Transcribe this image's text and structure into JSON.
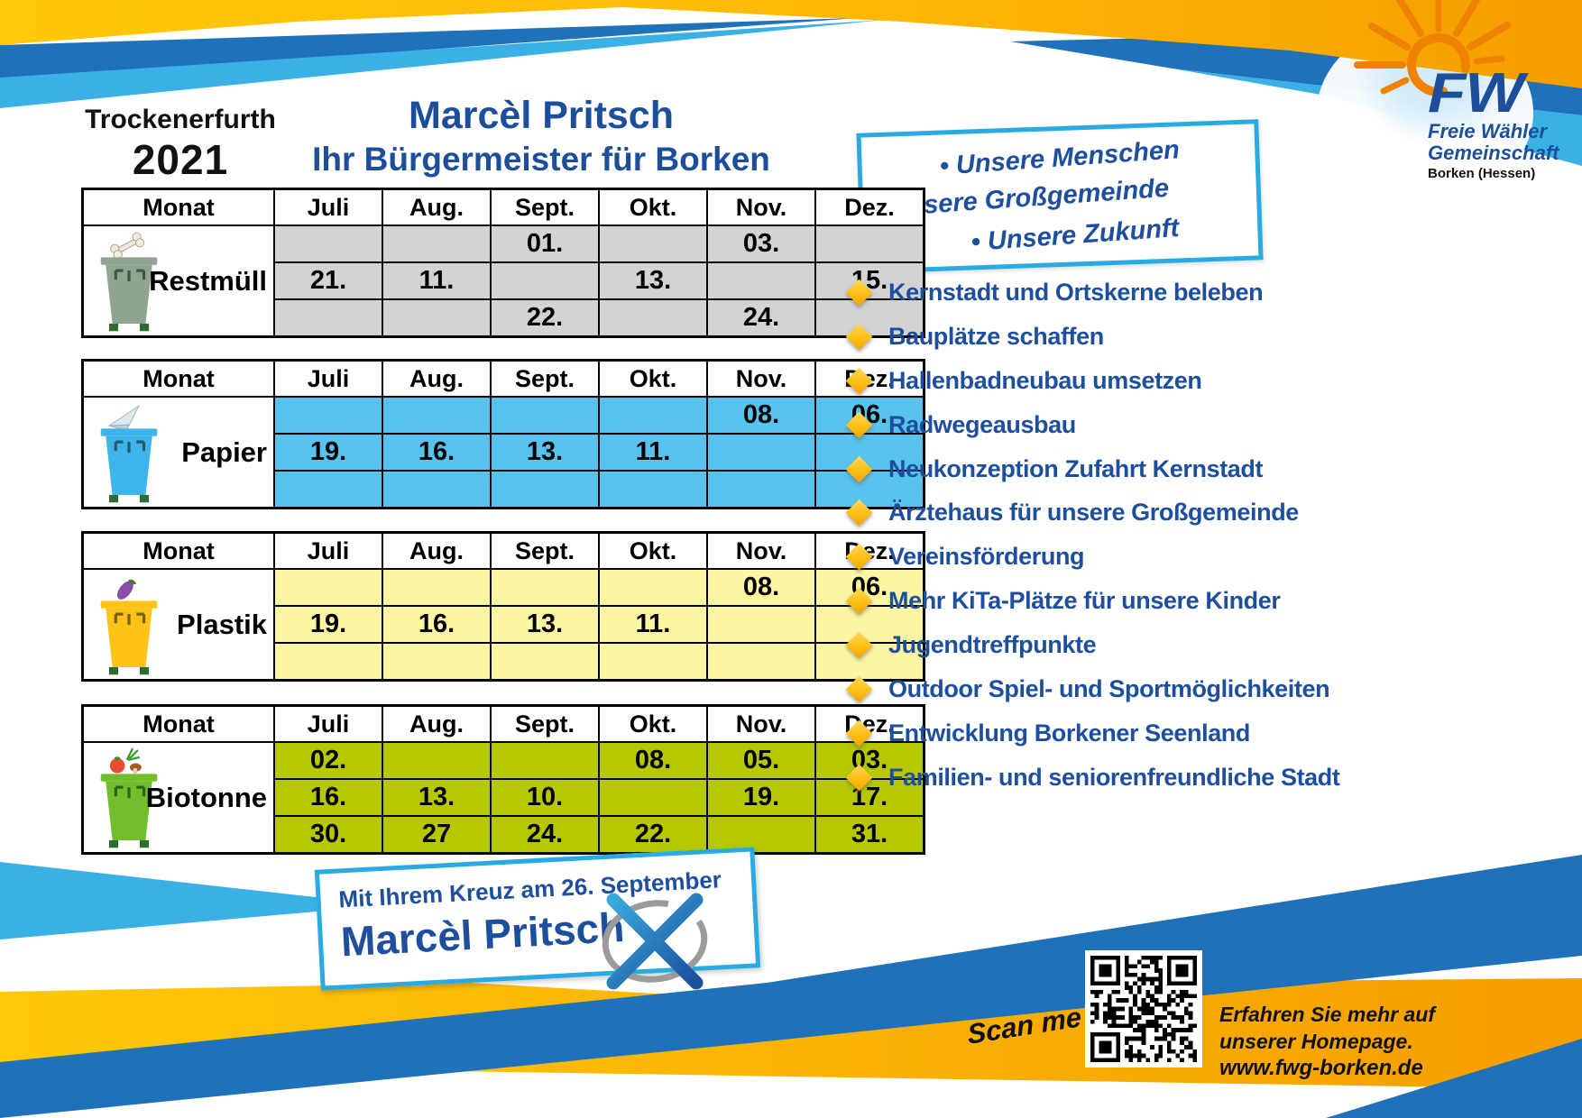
{
  "location": {
    "name": "Trockenerfurth",
    "year": "2021"
  },
  "header": {
    "title": "Marcèl Pritsch",
    "subtitle": "Ihr Bürgermeister für Borken"
  },
  "logo": {
    "abbr": "FW",
    "org_line1": "Freie Wähler",
    "org_line2": "Gemeinschaft",
    "org_line3": "Borken (Hessen)"
  },
  "slogan_box": {
    "lines": [
      "• Unsere Menschen",
      "• Unsere Großgemeinde",
      "• Unsere Zukunft"
    ]
  },
  "calendar": {
    "header_row": [
      "Monat",
      "Juli",
      "Aug.",
      "Sept.",
      "Okt.",
      "Nov.",
      "Dez."
    ],
    "tables": [
      {
        "category": "Restmüll",
        "icon": "restmuell-bin-icon",
        "topper": "bone",
        "row_color": "#d3d3d3",
        "bin_color": "#8fa591",
        "rows": [
          [
            "",
            "",
            "01.",
            "",
            "03.",
            ""
          ],
          [
            "21.",
            "11.",
            "",
            "13.",
            "",
            "15."
          ],
          [
            "",
            "",
            "22.",
            "",
            "24.",
            ""
          ]
        ]
      },
      {
        "category": "Papier",
        "icon": "papier-bin-icon",
        "topper": "paper",
        "row_color": "#57c3ee",
        "bin_color": "#3fb4ea",
        "rows": [
          [
            "",
            "",
            "",
            "",
            "08.",
            "06."
          ],
          [
            "19.",
            "16.",
            "13.",
            "11.",
            "",
            ""
          ],
          [
            "",
            "",
            "",
            "",
            "",
            ""
          ]
        ]
      },
      {
        "category": "Plastik",
        "icon": "plastik-bin-icon",
        "topper": "eggplant",
        "row_color": "#fcf6a4",
        "bin_color": "#ffc317",
        "rows": [
          [
            "",
            "",
            "",
            "",
            "08.",
            "06."
          ],
          [
            "19.",
            "16.",
            "13.",
            "11.",
            "",
            ""
          ],
          [
            "",
            "",
            "",
            "",
            "",
            ""
          ]
        ]
      },
      {
        "category": "Biotonne",
        "icon": "biotonne-bin-icon",
        "topper": "veggies",
        "row_color": "#b7c800",
        "bin_color": "#70be2b",
        "rows": [
          [
            "02.",
            "",
            "",
            "08.",
            "05.",
            "03."
          ],
          [
            "16.",
            "13.",
            "10.",
            "",
            "19.",
            "17."
          ],
          [
            "30.",
            "27",
            "24.",
            "22.",
            "",
            "31."
          ]
        ]
      }
    ]
  },
  "agenda": {
    "items": [
      "Kernstadt und Ortskerne beleben",
      "Bauplätze schaffen",
      "Hallenbadneubau umsetzen",
      "Radwegeausbau",
      "Neukonzeption Zufahrt Kernstadt",
      "Ärztehaus für unsere Großgemeinde",
      "Vereinsförderung",
      "Mehr KiTa-Plätze für unsere Kinder",
      "Jugendtreffpunkte",
      "Outdoor Spiel- und Sportmöglichkeiten",
      "Entwicklung Borkener Seenland",
      "Familien- und seniorenfreundliche Stadt"
    ]
  },
  "footer": {
    "cta_line1": "Mit Ihrem Kreuz am 26. September",
    "cta_line2": "Marcèl Pritsch",
    "scan_label": "Scan me",
    "homepage": {
      "line1": "Erfahren Sie mehr auf",
      "line2": "unserer Homepage.",
      "line3": "www.fwg-borken.de"
    }
  },
  "colors": {
    "fw_blue": "#1c4e9c",
    "agenda_blue": "#1d4f9e",
    "box_border_blue": "#29abe2",
    "band_dark_blue": "#1f72b9",
    "band_light_blue": "#3ab0e4",
    "band_gold": "#ffc808",
    "band_orange": "#f59e00",
    "sun_orange": "#ef8200"
  }
}
